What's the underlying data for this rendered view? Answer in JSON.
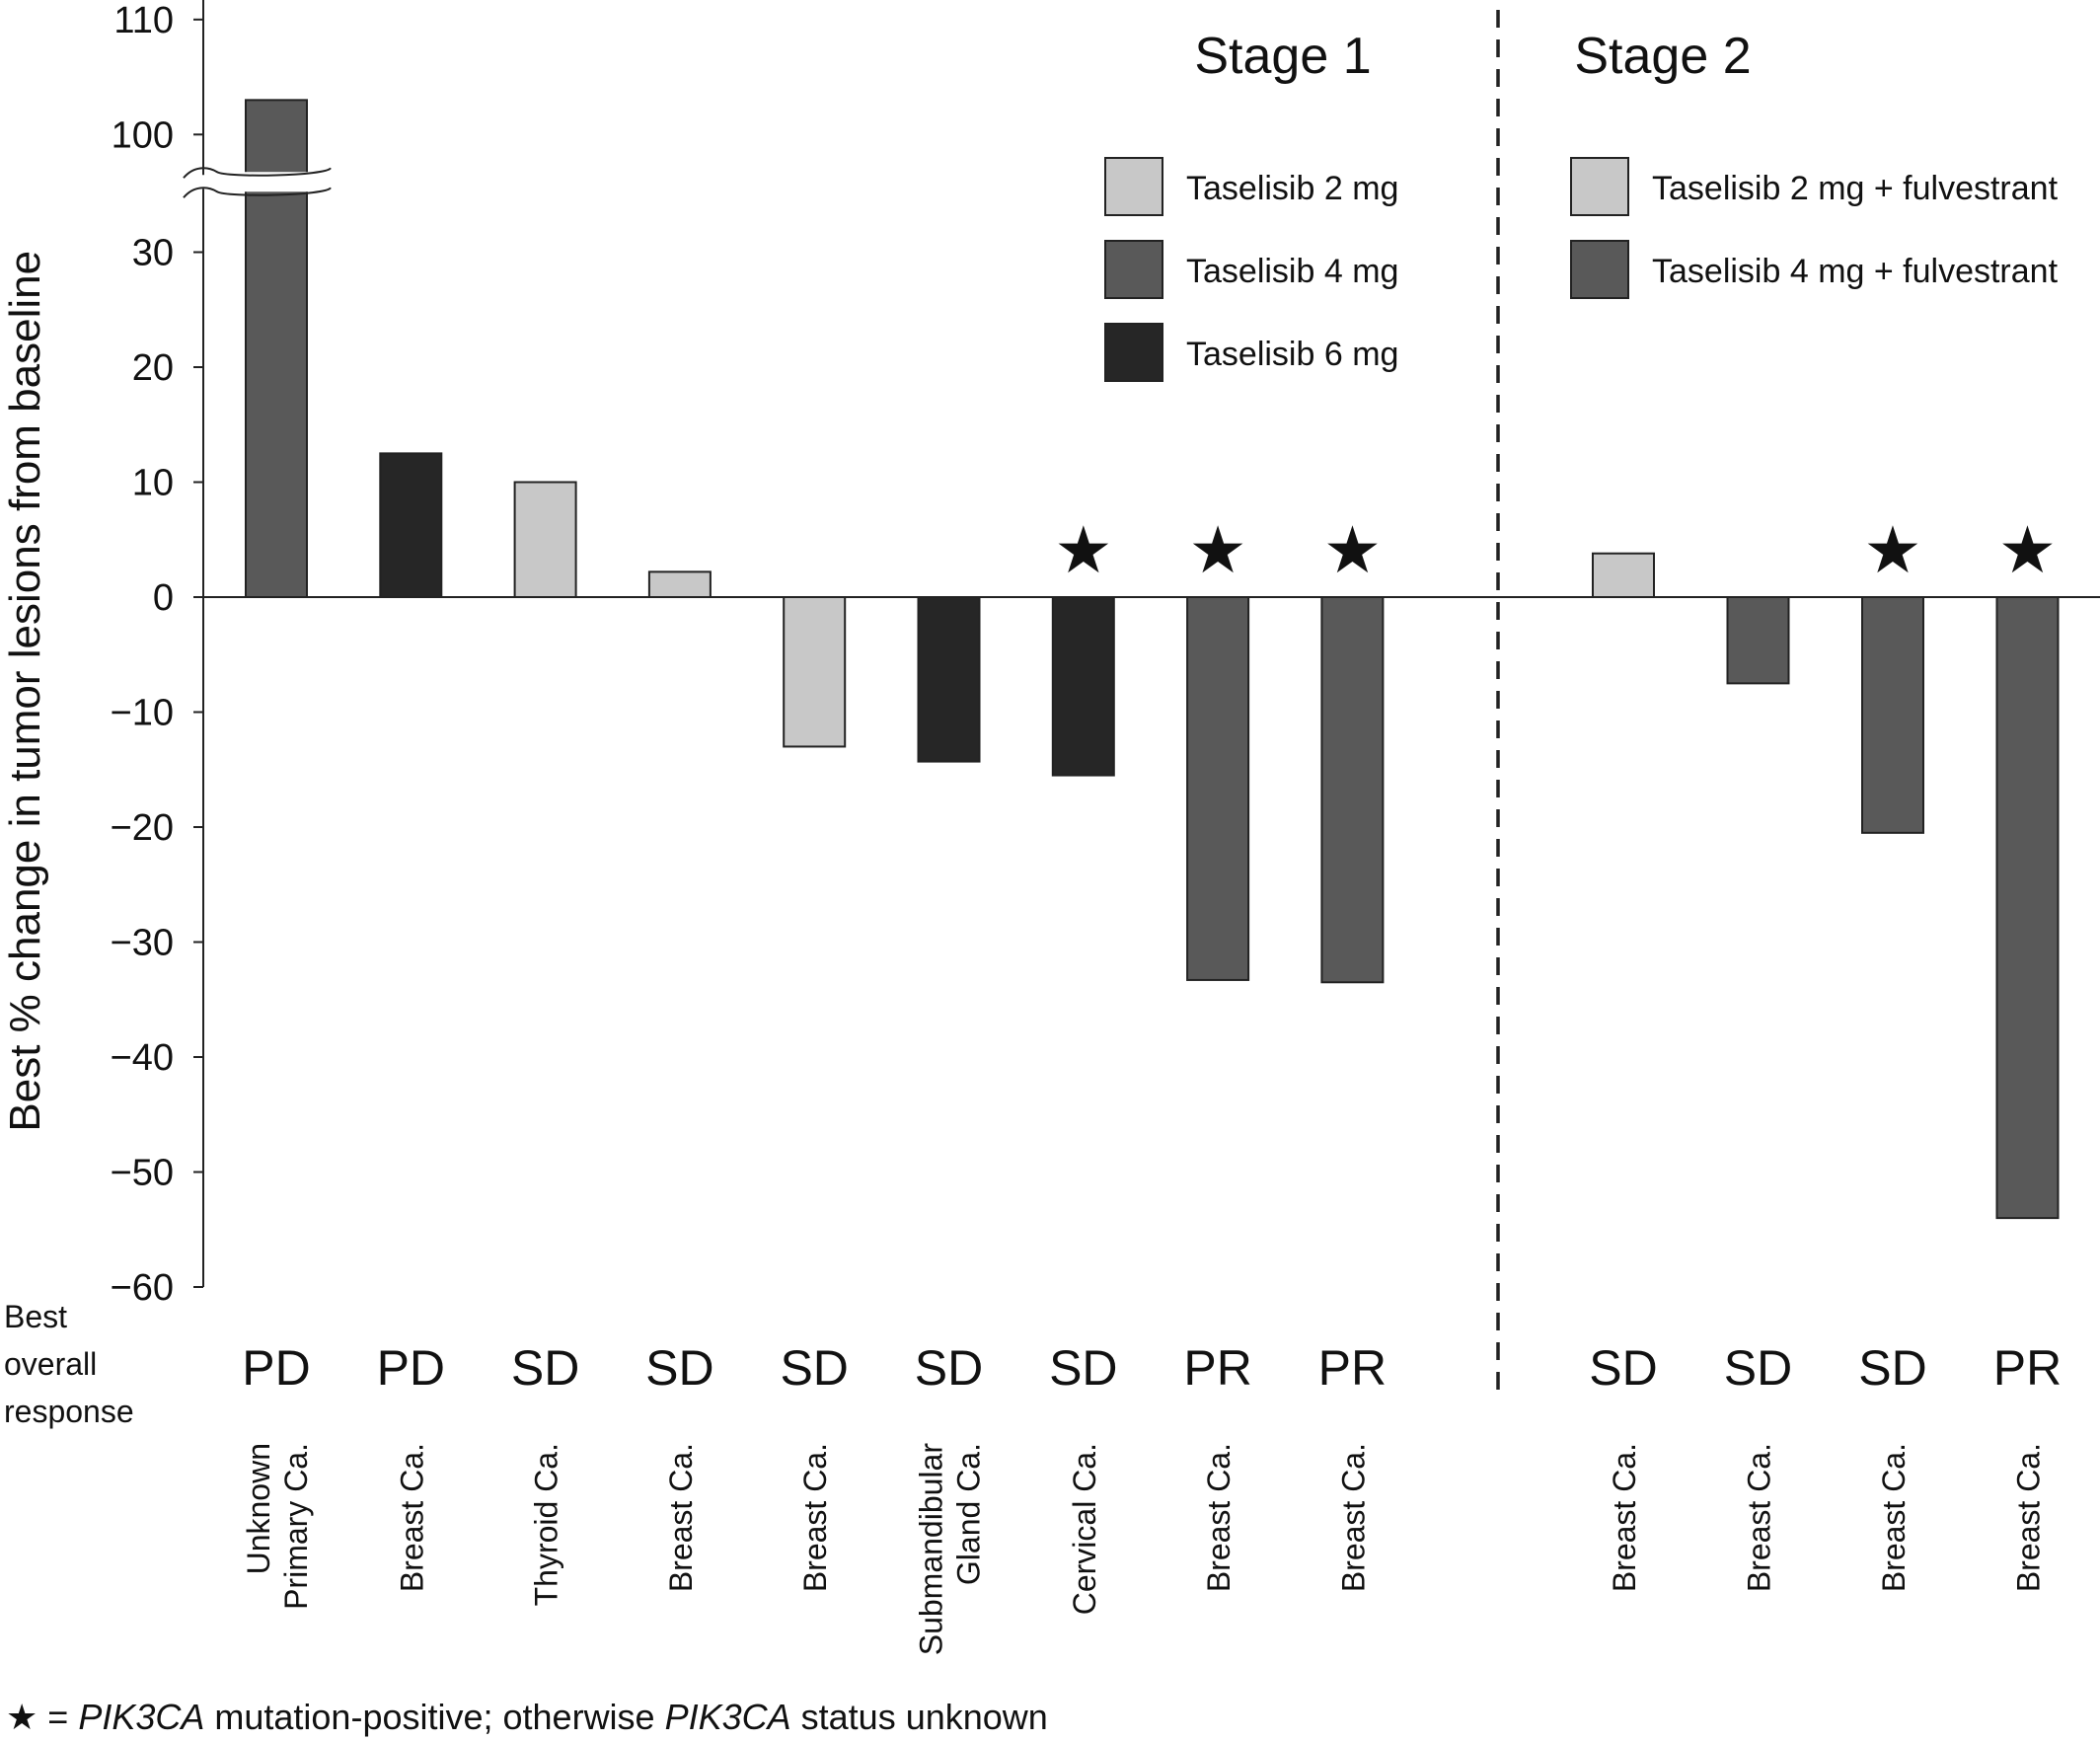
{
  "chart_data": {
    "type": "bar",
    "ylabel": "Best % change  in tumor lesions from baseline",
    "yticks": [
      110,
      100,
      30,
      20,
      10,
      0,
      -10,
      -20,
      -30,
      -40,
      -50,
      -60
    ],
    "axis_break": {
      "lower": 35,
      "upper": 97
    },
    "stages": [
      {
        "label": "Stage 1"
      },
      {
        "label": "Stage 2"
      }
    ],
    "legend": [
      {
        "key": "t2",
        "label": "Taselisib 2 mg",
        "color": "#c8c8c8"
      },
      {
        "key": "t4",
        "label": "Taselisib 4 mg",
        "color": "#595959"
      },
      {
        "key": "t6",
        "label": "Taselisib 6 mg",
        "color": "#262626"
      },
      {
        "key": "t2f",
        "label": "Taselisib 2 mg + fulvestrant",
        "color": "#c8c8c8"
      },
      {
        "key": "t4f",
        "label": "Taselisib 4 mg + fulvestrant",
        "color": "#595959"
      }
    ],
    "side_label": [
      "Best",
      "overall",
      "response"
    ],
    "bars": [
      {
        "stage": 1,
        "value": 103,
        "group": "t4",
        "response": "PD",
        "tumor": [
          "Unknown",
          "Primary Ca."
        ],
        "star": false
      },
      {
        "stage": 1,
        "value": 12.5,
        "group": "t6",
        "response": "PD",
        "tumor": [
          "Breast Ca."
        ],
        "star": false
      },
      {
        "stage": 1,
        "value": 10,
        "group": "t2",
        "response": "SD",
        "tumor": [
          "Thyroid Ca."
        ],
        "star": false
      },
      {
        "stage": 1,
        "value": 2.2,
        "group": "t2",
        "response": "SD",
        "tumor": [
          "Breast Ca."
        ],
        "star": false
      },
      {
        "stage": 1,
        "value": -13,
        "group": "t2",
        "response": "SD",
        "tumor": [
          "Breast Ca."
        ],
        "star": false
      },
      {
        "stage": 1,
        "value": -14.3,
        "group": "t6",
        "response": "SD",
        "tumor": [
          "Submandibular",
          "Gland Ca."
        ],
        "star": false
      },
      {
        "stage": 1,
        "value": -15.5,
        "group": "t6",
        "response": "SD",
        "tumor": [
          "Cervical Ca."
        ],
        "star": true
      },
      {
        "stage": 1,
        "value": -33.3,
        "group": "t4",
        "response": "PR",
        "tumor": [
          "Breast Ca."
        ],
        "star": true
      },
      {
        "stage": 1,
        "value": -33.5,
        "group": "t4",
        "response": "PR",
        "tumor": [
          "Breast Ca."
        ],
        "star": true
      },
      {
        "stage": 2,
        "value": 3.8,
        "group": "t2f",
        "response": "SD",
        "tumor": [
          "Breast Ca."
        ],
        "star": false
      },
      {
        "stage": 2,
        "value": -7.5,
        "group": "t4f",
        "response": "SD",
        "tumor": [
          "Breast Ca."
        ],
        "star": false
      },
      {
        "stage": 2,
        "value": -20.5,
        "group": "t4f",
        "response": "SD",
        "tumor": [
          "Breast Ca."
        ],
        "star": true
      },
      {
        "stage": 2,
        "value": -54,
        "group": "t4f",
        "response": "PR",
        "tumor": [
          "Breast Ca."
        ],
        "star": true
      }
    ],
    "footnote": {
      "star": "★",
      "parts": [
        {
          "text": " = ",
          "italic": false
        },
        {
          "text": "PIK3CA",
          "italic": true
        },
        {
          "text": " mutation-positive; otherwise ",
          "italic": false
        },
        {
          "text": "PIK3CA",
          "italic": true
        },
        {
          "text": " status unknown",
          "italic": false
        }
      ]
    }
  }
}
